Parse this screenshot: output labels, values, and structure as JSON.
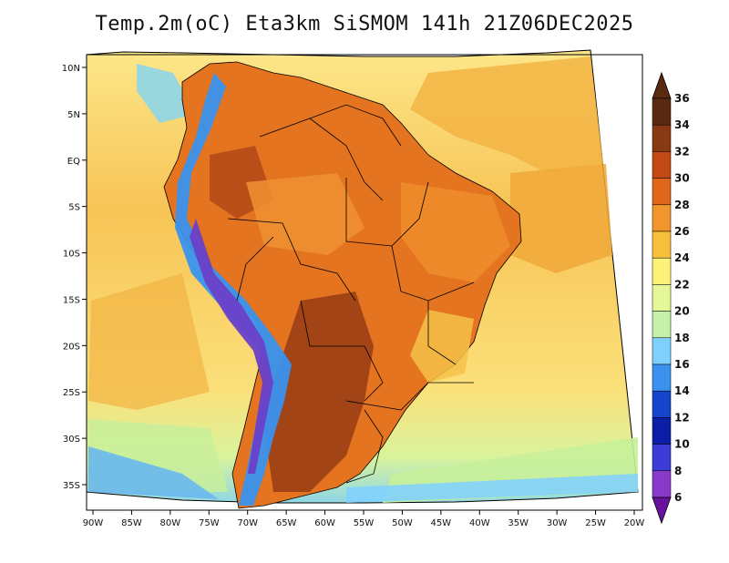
{
  "title": "Temp.2m(oC) Eta3km SiSMOM 141h 21Z06DEC2025",
  "map": {
    "lon_labels": [
      "90W",
      "85W",
      "80W",
      "75W",
      "70W",
      "65W",
      "60W",
      "55W",
      "50W",
      "45W",
      "40W",
      "35W",
      "30W",
      "25W",
      "20W"
    ],
    "lat_labels": [
      "10N",
      "5N",
      "EQ",
      "5S",
      "10S",
      "15S",
      "20S",
      "25S",
      "30S",
      "35S"
    ],
    "lon_range": [
      -90,
      -20
    ],
    "lat_range": [
      -38,
      12
    ]
  },
  "colorbar": {
    "labels": [
      "36",
      "34",
      "32",
      "30",
      "28",
      "26",
      "24",
      "22",
      "20",
      "18",
      "16",
      "14",
      "12",
      "10",
      "8",
      "6"
    ],
    "colors": [
      "#5a2a10",
      "#8a3a12",
      "#c24a14",
      "#e0661c",
      "#f0962c",
      "#f7bf3a",
      "#fdf17a",
      "#e6f79a",
      "#c4f2a8",
      "#7fd0ff",
      "#3a92ee",
      "#1644cc",
      "#0a1ea8",
      "#3c3cd8",
      "#8a3ac8",
      "#6a12a0"
    ]
  },
  "colors": {
    "ocean_warm": "#f5c75a",
    "ocean_mid": "#fbe988",
    "ocean_cool": "#dff59a",
    "ocean_cold": "#9fe0c8",
    "land_hot": "#d8641c",
    "land_very_hot": "#9a3a14",
    "andes_cold": "#6a40c8"
  }
}
